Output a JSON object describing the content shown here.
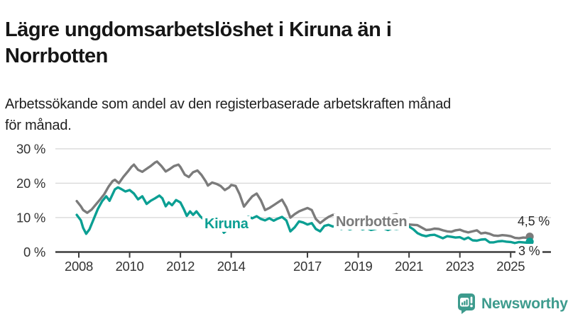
{
  "header": {
    "title_lines": [
      "Lägre ungdomsarbetslöshet i Kiruna än i",
      "Norrbotten"
    ],
    "subtitle_lines": [
      "Arbetssökande som andel av den registerbaserade arbetskraften månad",
      "för månad."
    ]
  },
  "footer": {
    "brand": "Newsworthy",
    "brand_color": "#3d9b8d"
  },
  "chart_data": {
    "type": "line",
    "title": "Lägre ungdomsarbetslöshet i Kiruna än i Norrbotten",
    "subtitle": "Arbetssökande som andel av den registerbaserade arbetskraften månad för månad.",
    "xlabel": "",
    "ylabel": "",
    "x_ticks": [
      2008,
      2010,
      2012,
      2014,
      2017,
      2019,
      2021,
      2023,
      2025
    ],
    "y_ticks": [
      0,
      10,
      20,
      30
    ],
    "y_tick_suffix": " %",
    "xlim": [
      2007.75,
      2026.1
    ],
    "ylim": [
      0,
      31
    ],
    "grid": true,
    "legend_position": "inline-labels",
    "colors": {
      "grid": "#d9d9d9",
      "axis": "#3d3d3d",
      "tick_text": "#333333"
    },
    "series": [
      {
        "name": "Norrbotten",
        "color": "#7b7b7b",
        "end_label": "4,5 %",
        "end_value": 4.5,
        "points": [
          [
            2007.92,
            14.8
          ],
          [
            2008.08,
            13.3
          ],
          [
            2008.17,
            12.2
          ],
          [
            2008.33,
            11.4
          ],
          [
            2008.5,
            12.3
          ],
          [
            2008.67,
            13.8
          ],
          [
            2008.83,
            15.2
          ],
          [
            2009.0,
            16.8
          ],
          [
            2009.17,
            19.0
          ],
          [
            2009.33,
            20.6
          ],
          [
            2009.42,
            21.0
          ],
          [
            2009.58,
            20.0
          ],
          [
            2009.75,
            21.8
          ],
          [
            2009.92,
            23.3
          ],
          [
            2010.08,
            24.8
          ],
          [
            2010.17,
            25.4
          ],
          [
            2010.33,
            23.9
          ],
          [
            2010.5,
            23.3
          ],
          [
            2010.67,
            24.2
          ],
          [
            2010.83,
            25.0
          ],
          [
            2011.0,
            26.0
          ],
          [
            2011.08,
            26.3
          ],
          [
            2011.25,
            25.0
          ],
          [
            2011.42,
            23.4
          ],
          [
            2011.58,
            24.1
          ],
          [
            2011.75,
            25.0
          ],
          [
            2011.92,
            25.4
          ],
          [
            2012.0,
            24.7
          ],
          [
            2012.17,
            22.5
          ],
          [
            2012.33,
            21.8
          ],
          [
            2012.5,
            23.2
          ],
          [
            2012.67,
            23.7
          ],
          [
            2012.83,
            22.4
          ],
          [
            2013.0,
            20.5
          ],
          [
            2013.08,
            19.3
          ],
          [
            2013.25,
            20.2
          ],
          [
            2013.42,
            19.8
          ],
          [
            2013.58,
            19.2
          ],
          [
            2013.75,
            18.0
          ],
          [
            2013.92,
            18.8
          ],
          [
            2014.0,
            19.5
          ],
          [
            2014.17,
            19.2
          ],
          [
            2014.33,
            16.8
          ],
          [
            2014.5,
            13.2
          ],
          [
            2014.67,
            14.8
          ],
          [
            2014.83,
            16.2
          ],
          [
            2015.0,
            17.0
          ],
          [
            2015.17,
            15.0
          ],
          [
            2015.33,
            12.2
          ],
          [
            2015.5,
            12.8
          ],
          [
            2015.67,
            13.6
          ],
          [
            2015.83,
            14.4
          ],
          [
            2016.0,
            15.2
          ],
          [
            2016.17,
            13.0
          ],
          [
            2016.33,
            10.0
          ],
          [
            2016.5,
            11.0
          ],
          [
            2016.67,
            11.8
          ],
          [
            2016.83,
            12.3
          ],
          [
            2017.0,
            12.8
          ],
          [
            2017.17,
            12.2
          ],
          [
            2017.33,
            9.6
          ],
          [
            2017.5,
            8.4
          ],
          [
            2017.67,
            9.4
          ],
          [
            2017.83,
            10.2
          ],
          [
            2018.0,
            10.8
          ],
          [
            2018.17,
            10.6
          ],
          [
            2018.33,
            9.6
          ],
          [
            2018.5,
            8.8
          ],
          [
            2018.67,
            9.4
          ],
          [
            2018.83,
            10.0
          ],
          [
            2019.0,
            9.8
          ],
          [
            2019.17,
            9.2
          ],
          [
            2019.33,
            8.6
          ],
          [
            2019.5,
            8.2
          ],
          [
            2019.67,
            8.6
          ],
          [
            2019.83,
            9.0
          ],
          [
            2020.0,
            9.2
          ],
          [
            2020.17,
            9.8
          ],
          [
            2020.33,
            10.7
          ],
          [
            2020.5,
            11.0
          ],
          [
            2020.67,
            10.0
          ],
          [
            2020.83,
            8.6
          ],
          [
            2021.0,
            8.0
          ],
          [
            2021.17,
            7.9
          ],
          [
            2021.33,
            7.8
          ],
          [
            2021.5,
            7.1
          ],
          [
            2021.67,
            6.4
          ],
          [
            2021.83,
            6.5
          ],
          [
            2022.0,
            6.8
          ],
          [
            2022.17,
            6.7
          ],
          [
            2022.33,
            6.3
          ],
          [
            2022.5,
            6.0
          ],
          [
            2022.67,
            5.9
          ],
          [
            2022.83,
            6.3
          ],
          [
            2023.0,
            6.5
          ],
          [
            2023.17,
            6.0
          ],
          [
            2023.33,
            5.7
          ],
          [
            2023.5,
            6.0
          ],
          [
            2023.67,
            6.3
          ],
          [
            2023.83,
            5.4
          ],
          [
            2024.0,
            5.6
          ],
          [
            2024.17,
            5.3
          ],
          [
            2024.33,
            4.8
          ],
          [
            2024.5,
            4.7
          ],
          [
            2024.67,
            4.9
          ],
          [
            2024.83,
            4.8
          ],
          [
            2025.0,
            4.6
          ],
          [
            2025.17,
            4.1
          ],
          [
            2025.33,
            4.0
          ],
          [
            2025.5,
            4.2
          ],
          [
            2025.67,
            4.1
          ],
          [
            2025.75,
            4.5
          ]
        ]
      },
      {
        "name": "Kiruna",
        "color": "#0b9f93",
        "end_label": "3 %",
        "end_value": 3,
        "points": [
          [
            2007.92,
            10.8
          ],
          [
            2008.08,
            9.2
          ],
          [
            2008.17,
            7.0
          ],
          [
            2008.29,
            5.3
          ],
          [
            2008.42,
            6.6
          ],
          [
            2008.58,
            9.5
          ],
          [
            2008.75,
            12.5
          ],
          [
            2008.92,
            14.8
          ],
          [
            2009.08,
            16.2
          ],
          [
            2009.21,
            14.9
          ],
          [
            2009.33,
            16.8
          ],
          [
            2009.42,
            18.2
          ],
          [
            2009.54,
            18.8
          ],
          [
            2009.67,
            18.3
          ],
          [
            2009.83,
            17.6
          ],
          [
            2010.0,
            18.0
          ],
          [
            2010.17,
            17.0
          ],
          [
            2010.33,
            15.3
          ],
          [
            2010.5,
            16.2
          ],
          [
            2010.67,
            14.0
          ],
          [
            2010.83,
            14.9
          ],
          [
            2011.0,
            15.6
          ],
          [
            2011.17,
            16.4
          ],
          [
            2011.29,
            15.6
          ],
          [
            2011.42,
            13.3
          ],
          [
            2011.54,
            14.4
          ],
          [
            2011.67,
            13.6
          ],
          [
            2011.83,
            15.1
          ],
          [
            2012.0,
            14.4
          ],
          [
            2012.13,
            12.5
          ],
          [
            2012.25,
            10.5
          ],
          [
            2012.38,
            11.8
          ],
          [
            2012.5,
            10.8
          ],
          [
            2012.63,
            11.8
          ],
          [
            2012.79,
            10.3
          ],
          [
            2012.92,
            9.5
          ],
          [
            2013.08,
            8.9
          ],
          [
            2013.25,
            10.0
          ],
          [
            2013.42,
            9.4
          ],
          [
            2013.58,
            7.6
          ],
          [
            2013.71,
            5.6
          ],
          [
            2013.83,
            6.4
          ],
          [
            2013.96,
            9.3
          ],
          [
            2014.17,
            9.8
          ],
          [
            2014.33,
            9.3
          ],
          [
            2014.5,
            9.7
          ],
          [
            2014.67,
            10.2
          ],
          [
            2014.83,
            9.8
          ],
          [
            2015.0,
            10.4
          ],
          [
            2015.17,
            9.6
          ],
          [
            2015.33,
            9.2
          ],
          [
            2015.5,
            9.8
          ],
          [
            2015.67,
            9.1
          ],
          [
            2015.83,
            9.7
          ],
          [
            2016.0,
            10.2
          ],
          [
            2016.17,
            9.2
          ],
          [
            2016.33,
            6.0
          ],
          [
            2016.5,
            7.2
          ],
          [
            2016.67,
            8.9
          ],
          [
            2016.83,
            8.6
          ],
          [
            2017.0,
            8.0
          ],
          [
            2017.17,
            8.4
          ],
          [
            2017.33,
            6.7
          ],
          [
            2017.5,
            6.0
          ],
          [
            2017.67,
            7.6
          ],
          [
            2017.83,
            7.9
          ],
          [
            2018.0,
            7.4
          ],
          [
            2018.17,
            7.7
          ],
          [
            2018.33,
            6.7
          ],
          [
            2018.5,
            7.1
          ],
          [
            2018.67,
            6.6
          ],
          [
            2018.83,
            7.0
          ],
          [
            2019.0,
            7.2
          ],
          [
            2019.17,
            6.6
          ],
          [
            2019.33,
            7.0
          ],
          [
            2019.5,
            6.4
          ],
          [
            2019.67,
            6.7
          ],
          [
            2019.83,
            7.0
          ],
          [
            2020.0,
            6.9
          ],
          [
            2020.17,
            6.4
          ],
          [
            2020.33,
            6.9
          ],
          [
            2020.5,
            6.7
          ],
          [
            2020.67,
            6.9
          ],
          [
            2020.83,
            7.1
          ],
          [
            2021.0,
            7.4
          ],
          [
            2021.17,
            6.6
          ],
          [
            2021.33,
            5.5
          ],
          [
            2021.5,
            4.9
          ],
          [
            2021.67,
            4.6
          ],
          [
            2021.83,
            4.9
          ],
          [
            2022.0,
            5.0
          ],
          [
            2022.17,
            4.5
          ],
          [
            2022.33,
            4.0
          ],
          [
            2022.5,
            4.6
          ],
          [
            2022.67,
            4.4
          ],
          [
            2022.83,
            4.2
          ],
          [
            2023.0,
            4.3
          ],
          [
            2023.17,
            3.7
          ],
          [
            2023.33,
            4.2
          ],
          [
            2023.5,
            3.4
          ],
          [
            2023.67,
            3.3
          ],
          [
            2023.83,
            3.6
          ],
          [
            2024.0,
            3.7
          ],
          [
            2024.17,
            2.8
          ],
          [
            2024.33,
            2.8
          ],
          [
            2024.5,
            3.1
          ],
          [
            2024.67,
            3.2
          ],
          [
            2024.83,
            3.0
          ],
          [
            2025.0,
            2.9
          ],
          [
            2025.17,
            2.6
          ],
          [
            2025.33,
            2.9
          ],
          [
            2025.5,
            2.8
          ],
          [
            2025.67,
            2.7
          ],
          [
            2025.75,
            3.0
          ]
        ]
      }
    ]
  }
}
